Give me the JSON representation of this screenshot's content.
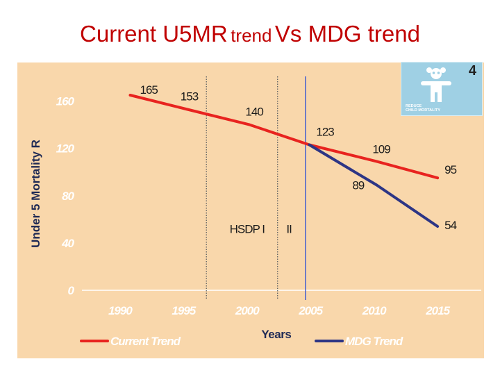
{
  "slide": {
    "title_part1": "Current U5MR",
    "title_part2": "trend",
    "title_part3": "Vs MDG trend"
  },
  "badge": {
    "number": "4",
    "caption_line1": "REDUCE",
    "caption_line2": "CHILD MORTALITY",
    "icon": "child-figure-icon"
  },
  "colors": {
    "background": "#f9d7ab",
    "current_trend": "#e8231f",
    "mdg_trend": "#2d3585",
    "title": "#c00000"
  },
  "chart_data": {
    "type": "line",
    "title": "",
    "xlabel": "Years",
    "ylabel": "Under 5 Mortality R",
    "xlim": [
      1987,
      2018
    ],
    "ylim": [
      0,
      175
    ],
    "xticks": [
      "1990",
      "1995",
      "2000",
      "2005",
      "2010",
      "2015"
    ],
    "yticks": [
      "0",
      "40",
      "80",
      "120",
      "160"
    ],
    "grid": false,
    "legend_position": "bottom",
    "series": [
      {
        "name": "Current Trend",
        "color": "#e8231f",
        "points": [
          {
            "x": 1990.8,
            "y": 165
          },
          {
            "x": 1995.3,
            "y": 153
          },
          {
            "x": 2000.2,
            "y": 140
          },
          {
            "x": 2004.9,
            "y": 123
          },
          {
            "x": 2010.2,
            "y": 109
          },
          {
            "x": 2015.0,
            "y": 95
          }
        ],
        "labels": [
          "165",
          "153",
          "140",
          "123",
          "109",
          "95"
        ]
      },
      {
        "name": "MDG Trend",
        "color": "#2d3585",
        "points": [
          {
            "x": 2004.9,
            "y": 123
          },
          {
            "x": 2010.2,
            "y": 89
          },
          {
            "x": 2015.0,
            "y": 54
          }
        ],
        "labels": [
          "",
          "89",
          "54"
        ]
      }
    ],
    "reference_lines": [
      {
        "x": 1996.8,
        "style": "dotted"
      },
      {
        "x": 2002.4,
        "style": "dotted"
      },
      {
        "x": 2004.6,
        "style": "solid"
      }
    ],
    "annotations": [
      {
        "text": "HSDP I",
        "x": 2000.0,
        "y": 52
      },
      {
        "text": "II",
        "x": 2003.3,
        "y": 52
      }
    ]
  }
}
